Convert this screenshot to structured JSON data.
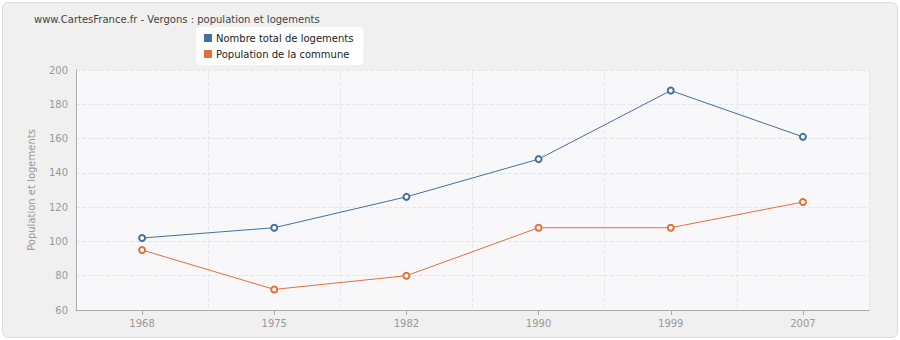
{
  "chart_data": {
    "type": "line",
    "title": "www.CartesFrance.fr - Vergons : population et logements",
    "y_label": "Population et logements",
    "categories": [
      "1968",
      "1975",
      "1982",
      "1990",
      "1999",
      "2007"
    ],
    "series": [
      {
        "name": "Nombre total de logements",
        "color": "#44709d",
        "values": [
          102,
          108,
          126,
          148,
          188,
          161
        ]
      },
      {
        "name": "Population de la commune",
        "color": "#e2703f",
        "values": [
          95,
          72,
          80,
          108,
          108,
          123
        ]
      }
    ],
    "ylim": [
      60,
      200
    ],
    "yticks": [
      60,
      80,
      100,
      120,
      140,
      160,
      180,
      200
    ],
    "grid": true,
    "legend": "top-left",
    "marker": "circle"
  }
}
